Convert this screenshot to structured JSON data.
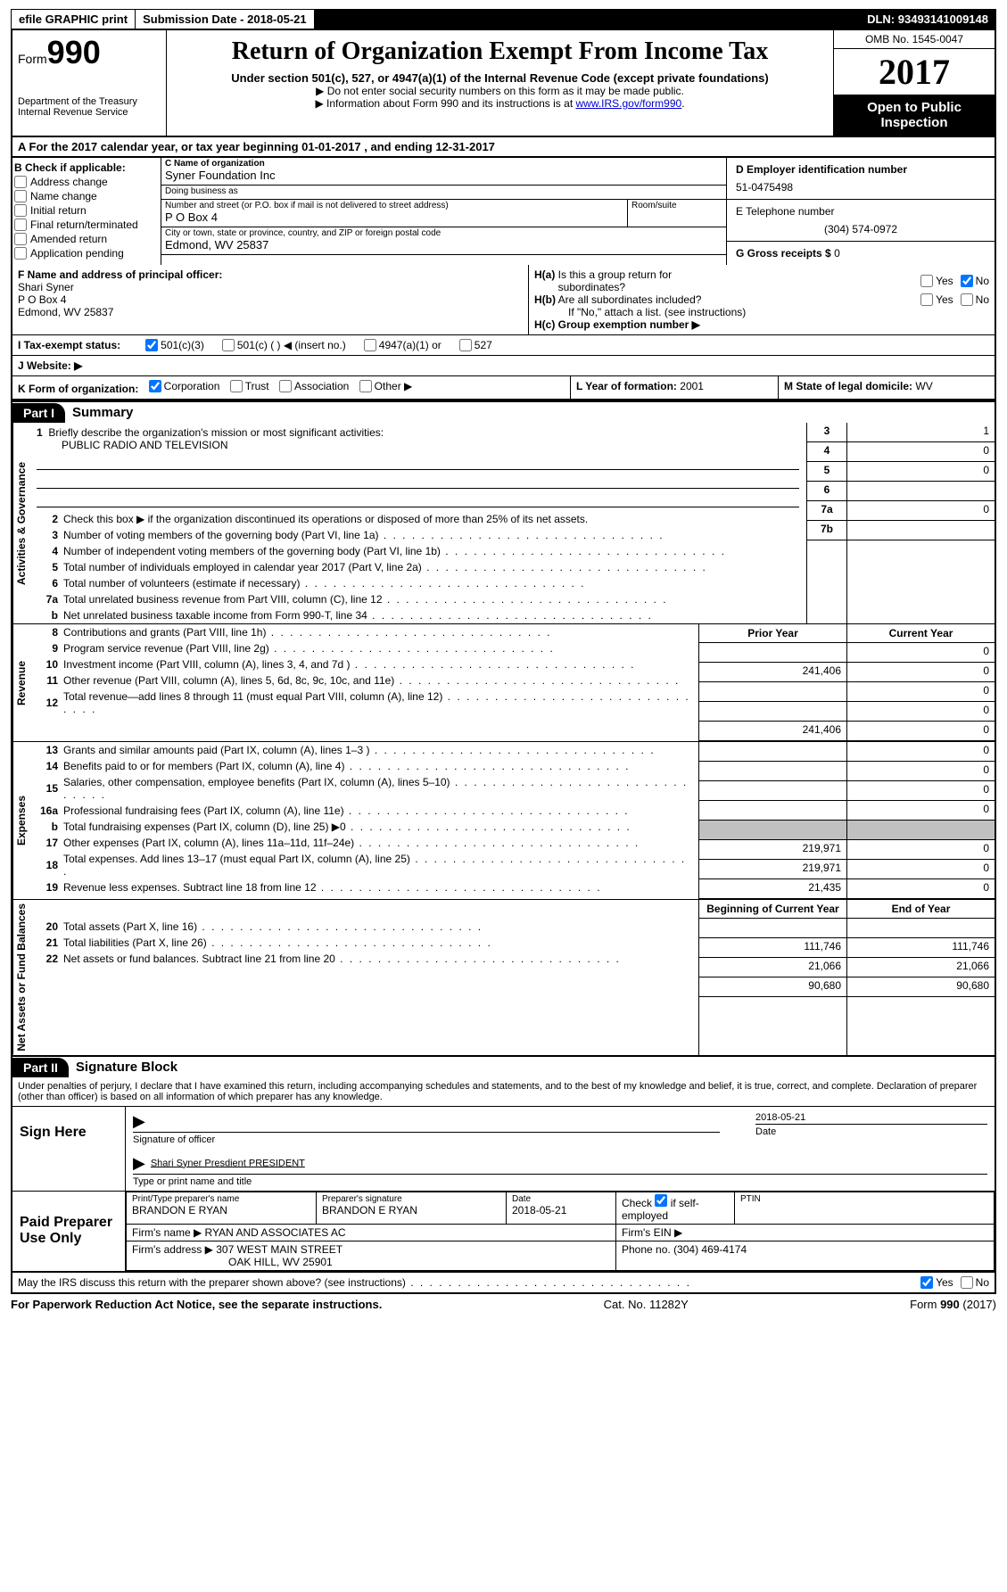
{
  "topbar": {
    "efile": "efile GRAPHIC print",
    "sub_label": "Submission Date",
    "sub_date": "2018-05-21",
    "dln_label": "DLN:",
    "dln": "93493141009148"
  },
  "header": {
    "form_word": "Form",
    "form_num": "990",
    "dept1": "Department of the Treasury",
    "dept2": "Internal Revenue Service",
    "title": "Return of Organization Exempt From Income Tax",
    "sub": "Under section 501(c), 527, or 4947(a)(1) of the Internal Revenue Code (except private foundations)",
    "note1": "▶ Do not enter social security numbers on this form as it may be made public.",
    "note2_pre": "▶ Information about Form 990 and its instructions is at ",
    "note2_link": "www.IRS.gov/form990",
    "omb": "OMB No. 1545-0047",
    "year": "2017",
    "open": "Open to Public Inspection"
  },
  "sectionA": "A  For the 2017 calendar year, or tax year beginning 01-01-2017   , and ending 12-31-2017",
  "boxB": {
    "title": "B Check if applicable:",
    "items": [
      "Address change",
      "Name change",
      "Initial return",
      "Final return/terminated",
      "Amended return",
      "Application pending"
    ]
  },
  "boxC": {
    "name_lbl": "C Name of organization",
    "name": "Syner Foundation Inc",
    "dba_lbl": "Doing business as",
    "dba": "",
    "addr_lbl": "Number and street (or P.O. box if mail is not delivered to street address)",
    "room_lbl": "Room/suite",
    "addr": "P O Box 4",
    "city_lbl": "City or town, state or province, country, and ZIP or foreign postal code",
    "city": "Edmond, WV 25837"
  },
  "boxD": {
    "lbl": "D Employer identification number",
    "val": "51-0475498"
  },
  "boxE": {
    "lbl": "E Telephone number",
    "val": "(304) 574-0972"
  },
  "boxG": {
    "lbl": "G Gross receipts $",
    "val": "0"
  },
  "boxF": {
    "lbl": "F  Name and address of principal officer:",
    "name": "Shari Syner",
    "addr1": "P O Box 4",
    "addr2": "Edmond, WV  25837"
  },
  "boxH": {
    "a_lbl": "H(a)  Is this a group return for subordinates?",
    "b_lbl": "H(b)  Are all subordinates included?",
    "note": "If \"No,\" attach a list. (see instructions)",
    "c_lbl": "H(c)  Group exemption number ▶",
    "yes": "Yes",
    "no": "No"
  },
  "rowI": {
    "lbl": "I  Tax-exempt status:",
    "o1": "501(c)(3)",
    "o2": "501(c) (  ) ◀ (insert no.)",
    "o3": "4947(a)(1) or",
    "o4": "527"
  },
  "rowJ": "J  Website: ▶",
  "rowK": {
    "lbl": "K Form of organization:",
    "o1": "Corporation",
    "o2": "Trust",
    "o3": "Association",
    "o4": "Other ▶"
  },
  "rowL": {
    "lbl": "L Year of formation:",
    "val": "2001"
  },
  "rowM": {
    "lbl": "M State of legal domicile:",
    "val": "WV"
  },
  "part1": {
    "hdr": "Part I",
    "title": "Summary"
  },
  "side_labels": {
    "ag": "Activities & Governance",
    "rev": "Revenue",
    "exp": "Expenses",
    "na": "Net Assets or Fund Balances"
  },
  "summary": {
    "brief_lbl": "1  Briefly describe the organization's mission or most significant activities:",
    "brief_val": "PUBLIC RADIO AND TELEVISION",
    "l2": "Check this box ▶      if the organization discontinued its operations or disposed of more than 25% of its net assets.",
    "lines_ag": [
      {
        "n": "3",
        "t": "Number of voting members of the governing body (Part VI, line 1a)",
        "k": "3",
        "v": "1"
      },
      {
        "n": "4",
        "t": "Number of independent voting members of the governing body (Part VI, line 1b)",
        "k": "4",
        "v": "0"
      },
      {
        "n": "5",
        "t": "Total number of individuals employed in calendar year 2017 (Part V, line 2a)",
        "k": "5",
        "v": "0"
      },
      {
        "n": "6",
        "t": "Total number of volunteers (estimate if necessary)",
        "k": "6",
        "v": ""
      },
      {
        "n": "7a",
        "t": "Total unrelated business revenue from Part VIII, column (C), line 12",
        "k": "7a",
        "v": "0"
      },
      {
        "n": "b",
        "t": "Net unrelated business taxable income from Form 990-T, line 34",
        "k": "7b",
        "v": ""
      }
    ],
    "col_hdr_prior": "Prior Year",
    "col_hdr_curr": "Current Year",
    "rev": [
      {
        "n": "8",
        "t": "Contributions and grants (Part VIII, line 1h)",
        "p": "",
        "c": "0"
      },
      {
        "n": "9",
        "t": "Program service revenue (Part VIII, line 2g)",
        "p": "241,406",
        "c": "0"
      },
      {
        "n": "10",
        "t": "Investment income (Part VIII, column (A), lines 3, 4, and 7d )",
        "p": "",
        "c": "0"
      },
      {
        "n": "11",
        "t": "Other revenue (Part VIII, column (A), lines 5, 6d, 8c, 9c, 10c, and 11e)",
        "p": "",
        "c": "0"
      },
      {
        "n": "12",
        "t": "Total revenue—add lines 8 through 11 (must equal Part VIII, column (A), line 12)",
        "p": "241,406",
        "c": "0"
      }
    ],
    "exp": [
      {
        "n": "13",
        "t": "Grants and similar amounts paid (Part IX, column (A), lines 1–3 )",
        "p": "",
        "c": "0"
      },
      {
        "n": "14",
        "t": "Benefits paid to or for members (Part IX, column (A), line 4)",
        "p": "",
        "c": "0"
      },
      {
        "n": "15",
        "t": "Salaries, other compensation, employee benefits (Part IX, column (A), lines 5–10)",
        "p": "",
        "c": "0"
      },
      {
        "n": "16a",
        "t": "Professional fundraising fees (Part IX, column (A), line 11e)",
        "p": "",
        "c": "0"
      },
      {
        "n": "b",
        "t": "Total fundraising expenses (Part IX, column (D), line 25) ▶0",
        "p": "SHADE",
        "c": "SHADE"
      },
      {
        "n": "17",
        "t": "Other expenses (Part IX, column (A), lines 11a–11d, 11f–24e)",
        "p": "219,971",
        "c": "0"
      },
      {
        "n": "18",
        "t": "Total expenses. Add lines 13–17 (must equal Part IX, column (A), line 25)",
        "p": "219,971",
        "c": "0"
      },
      {
        "n": "19",
        "t": "Revenue less expenses. Subtract line 18 from line 12",
        "p": "21,435",
        "c": "0"
      }
    ],
    "col_hdr_boy": "Beginning of Current Year",
    "col_hdr_eoy": "End of Year",
    "na": [
      {
        "n": "20",
        "t": "Total assets (Part X, line 16)",
        "p": "111,746",
        "c": "111,746"
      },
      {
        "n": "21",
        "t": "Total liabilities (Part X, line 26)",
        "p": "21,066",
        "c": "21,066"
      },
      {
        "n": "22",
        "t": "Net assets or fund balances. Subtract line 21 from line 20",
        "p": "90,680",
        "c": "90,680"
      }
    ]
  },
  "part2": {
    "hdr": "Part II",
    "title": "Signature Block"
  },
  "decl": "Under penalties of perjury, I declare that I have examined this return, including accompanying schedules and statements, and to the best of my knowledge and belief, it is true, correct, and complete. Declaration of preparer (other than officer) is based on all information of which preparer has any knowledge.",
  "sign": {
    "left": "Sign Here",
    "sig_lbl": "Signature of officer",
    "date_lbl": "Date",
    "date": "2018-05-21",
    "name": "Shari Syner Presdient PRESIDENT",
    "name_lbl": "Type or print name and title"
  },
  "prep": {
    "left": "Paid Preparer Use Only",
    "c1": "Print/Type preparer's name",
    "v1": "BRANDON E RYAN",
    "c2": "Preparer's signature",
    "v2": "BRANDON E RYAN",
    "c3": "Date",
    "v3": "2018-05-21",
    "c4": "Check",
    "c4b": "if self-employed",
    "c5": "PTIN",
    "firm_name_lbl": "Firm's name   ▶",
    "firm_name": "RYAN AND ASSOCIATES AC",
    "firm_ein_lbl": "Firm's EIN ▶",
    "firm_addr_lbl": "Firm's address ▶",
    "firm_addr1": "307 WEST MAIN STREET",
    "firm_addr2": "OAK HILL, WV  25901",
    "phone_lbl": "Phone no.",
    "phone": "(304) 469-4174"
  },
  "discuss": "May the IRS discuss this return with the preparer shown above? (see instructions)",
  "discuss_yes": "Yes",
  "discuss_no": "No",
  "footer": {
    "left": "For Paperwork Reduction Act Notice, see the separate instructions.",
    "mid": "Cat. No. 11282Y",
    "right": "Form 990 (2017)"
  }
}
